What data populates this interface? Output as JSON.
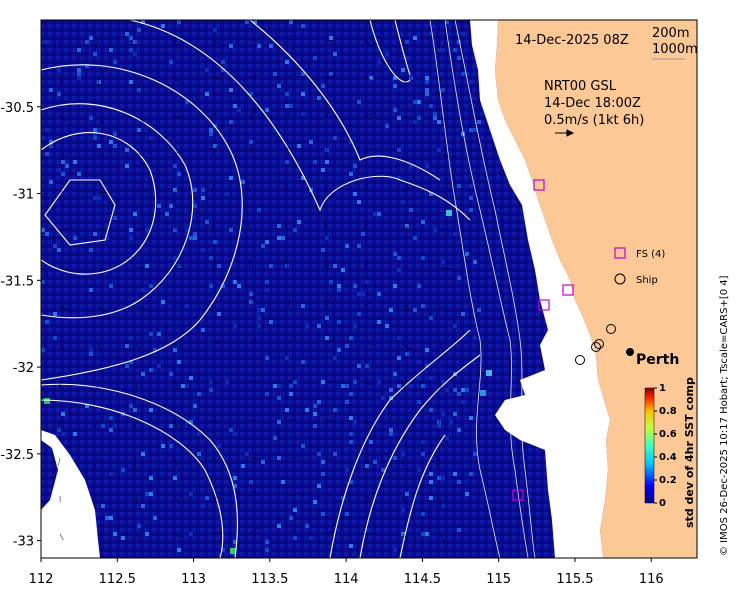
{
  "map": {
    "date_title": "14-Dec-2025 08Z",
    "depth_labels": [
      "200m",
      "1000m"
    ],
    "current_info": {
      "line1": "NRT00 GSL",
      "line2": "14-Dec 18:00Z",
      "line3": "0.5m/s (1kt 6h)"
    },
    "legend": {
      "fs_label": "FS (4)",
      "ship_label": "Ship"
    },
    "city": "Perth",
    "credit": "© IMOS 26-Dec-2025 10:17 Hobart; Tscale=CARS+[0 4]",
    "colorbar": {
      "label": "std dev of 4hr SST comp",
      "ticks": [
        "0",
        "0.2",
        "0.4",
        "0.6",
        "0.8",
        "1"
      ],
      "range": [
        0,
        1
      ]
    },
    "x_ticks": [
      "112",
      "112.5",
      "113",
      "113.5",
      "114",
      "114.5",
      "115",
      "115.5",
      "116"
    ],
    "y_ticks": [
      "-30.5",
      "-31",
      "-31.5",
      "-32",
      "-32.5",
      "-33"
    ],
    "x_range": [
      112,
      116.3
    ],
    "y_range": [
      -33.1,
      -30
    ],
    "colors": {
      "ocean_dark": "#08088c",
      "ocean_mid": "#1432b4",
      "land": "#fcc896",
      "no_data": "#ffffff",
      "contour": "#ffffff",
      "fs_marker": "#cc00cc"
    }
  }
}
